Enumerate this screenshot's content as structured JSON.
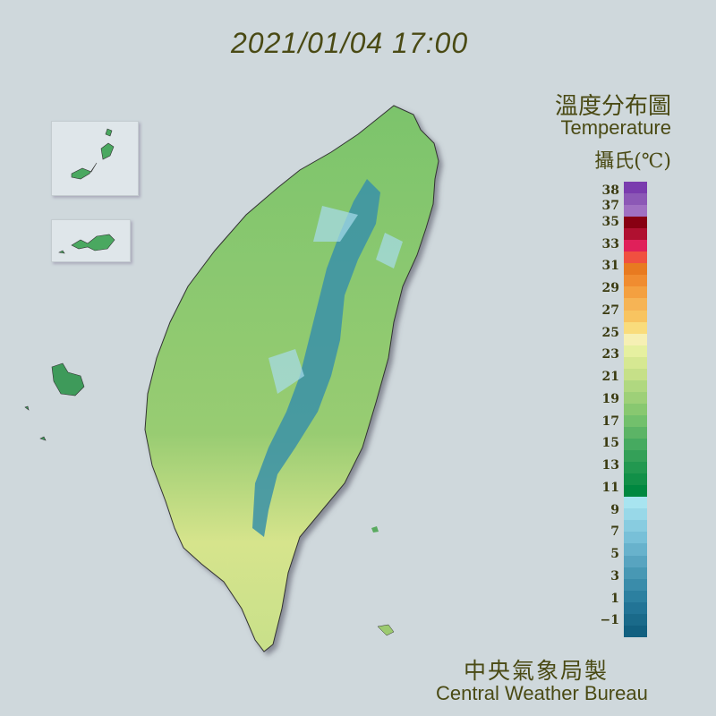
{
  "timestamp": "2021/01/04 17:00",
  "legend": {
    "title_zh": "溫度分布圖",
    "title_en": "Temperature",
    "unit": "攝氏(℃)",
    "labels": [
      "38",
      "37",
      "35",
      "33",
      "31",
      "29",
      "27",
      "25",
      "23",
      "21",
      "19",
      "17",
      "15",
      "13",
      "11",
      "9",
      "7",
      "5",
      "3",
      "1",
      "−1"
    ],
    "colors": [
      "#7a3cae",
      "#8c58b6",
      "#a070c2",
      "#880012",
      "#b01030",
      "#e0205a",
      "#f05040",
      "#e87a20",
      "#f08c30",
      "#f4a040",
      "#f6b455",
      "#f8c460",
      "#f9dc7c",
      "#f6f0b4",
      "#e6f0a0",
      "#d6e892",
      "#c6e088",
      "#b0d880",
      "#9ed078",
      "#88c870",
      "#72c06c",
      "#5cb466",
      "#46aa60",
      "#34a058",
      "#229850",
      "#129048",
      "#008840",
      "#a8e4f0",
      "#98d8e8",
      "#88cce0",
      "#78c0d8",
      "#68b2cc",
      "#58a4c0",
      "#4898b4",
      "#3a8caa",
      "#2c80a0",
      "#227496",
      "#1a6a8a",
      "#126080"
    ]
  },
  "credit": {
    "zh": "中央氣象局製",
    "en": "Central Weather Bureau"
  }
}
